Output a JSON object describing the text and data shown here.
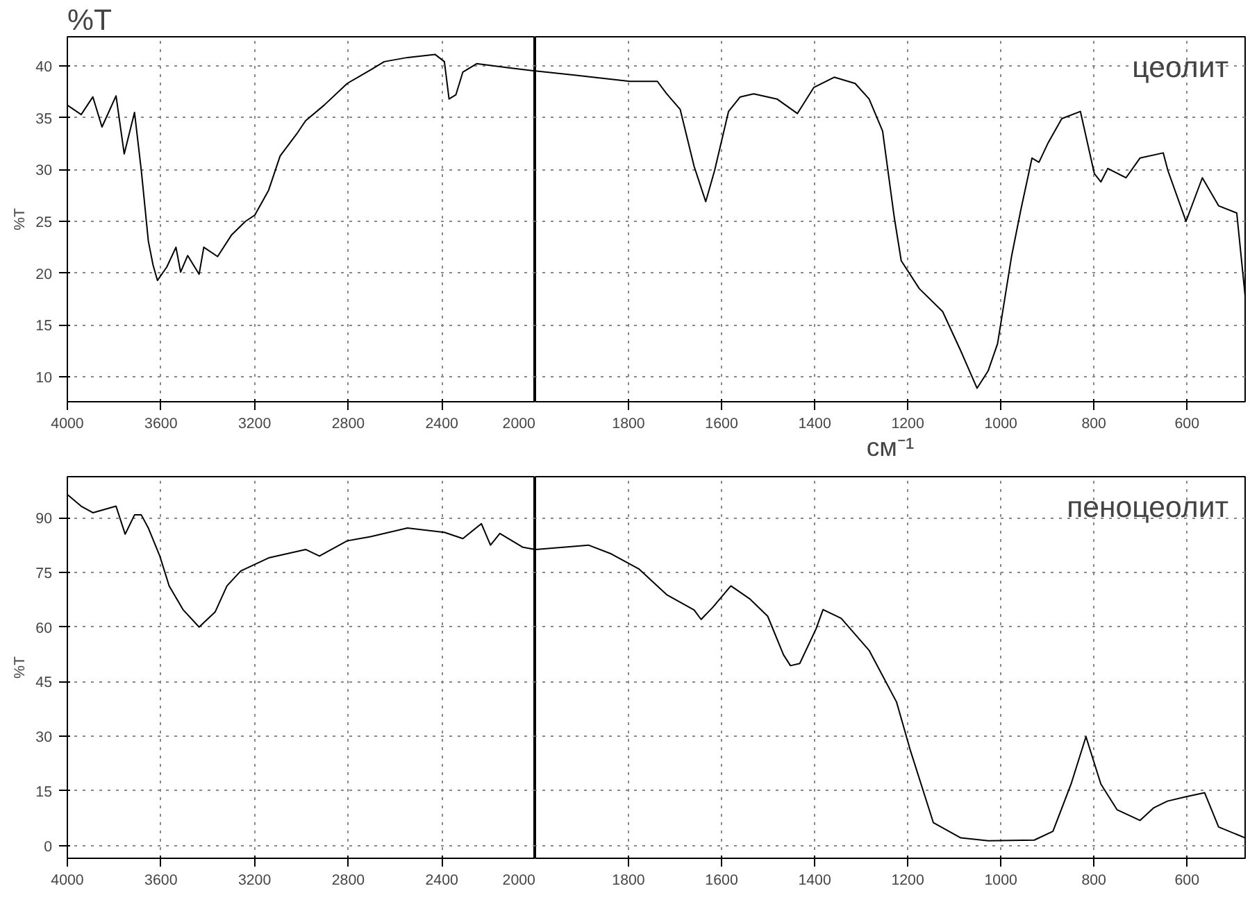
{
  "chart_data": [
    {
      "type": "line",
      "ylabel": "%T",
      "annotations": [
        "%T"
      ],
      "color": "#000000",
      "grid": true,
      "xlim": [
        4000,
        2000
      ],
      "ylim": [
        7.6,
        42.8
      ],
      "xticks": [
        4000,
        3600,
        3200,
        2800,
        2400,
        2000
      ],
      "yticks": [
        10,
        15,
        20,
        25,
        30,
        35,
        40
      ],
      "x": [
        4000,
        3941,
        3891,
        3852,
        3792,
        3757,
        3713,
        3684,
        3654,
        3634,
        3615,
        3575,
        3536,
        3516,
        3486,
        3437,
        3417,
        3358,
        3298,
        3239,
        3199,
        3140,
        3091,
        3021,
        2982,
        2903,
        2804,
        2705,
        2646,
        2547,
        2429,
        2389,
        2369,
        2340,
        2310,
        2251,
        2113,
        2000
      ],
      "values": [
        36.2,
        35.3,
        37.0,
        34.1,
        37.1,
        31.5,
        35.5,
        29.9,
        23.1,
        20.8,
        19.3,
        20.6,
        22.5,
        20.1,
        21.7,
        19.9,
        22.5,
        21.6,
        23.7,
        25.0,
        25.6,
        28.0,
        31.3,
        33.4,
        34.7,
        36.2,
        38.3,
        39.6,
        40.4,
        40.8,
        41.1,
        40.4,
        36.8,
        37.2,
        39.4,
        40.2,
        39.8,
        39.5
      ]
    },
    {
      "type": "line",
      "xlabel": "см⁻¹",
      "annotations": [
        "цеолит"
      ],
      "color": "#000000",
      "grid": true,
      "tick_labels": "x",
      "xlim": [
        2000,
        475
      ],
      "ylim": [
        7.6,
        42.8
      ],
      "xticks": [
        1800,
        1600,
        1400,
        1200,
        1000,
        800,
        600
      ],
      "yticks": [
        10,
        15,
        20,
        25,
        30,
        35,
        40
      ],
      "x": [
        2000,
        1916,
        1797,
        1738,
        1718,
        1689,
        1659,
        1634,
        1615,
        1585,
        1560,
        1531,
        1481,
        1437,
        1402,
        1358,
        1313,
        1283,
        1254,
        1229,
        1214,
        1175,
        1125,
        1086,
        1051,
        1027,
        1007,
        977,
        957,
        933,
        918,
        898,
        869,
        829,
        799,
        785,
        770,
        731,
        701,
        651,
        641,
        602,
        567,
        532,
        493,
        475
      ],
      "values": [
        39.5,
        39.1,
        38.5,
        38.5,
        37.3,
        35.8,
        30.3,
        26.9,
        29.9,
        35.6,
        37.0,
        37.3,
        36.8,
        35.4,
        37.9,
        38.9,
        38.3,
        36.8,
        33.7,
        25.4,
        21.2,
        18.5,
        16.3,
        12.5,
        8.9,
        10.6,
        13.2,
        21.6,
        26.1,
        31.1,
        30.7,
        32.6,
        34.9,
        35.6,
        29.6,
        28.8,
        30.1,
        29.2,
        31.1,
        31.6,
        29.9,
        25.0,
        29.2,
        26.5,
        25.8,
        17.8
      ]
    },
    {
      "type": "line",
      "ylabel": "%T",
      "color": "#000000",
      "grid": true,
      "xlim": [
        4000,
        2000
      ],
      "ylim": [
        -3.5,
        101.3
      ],
      "xticks": [
        4000,
        3600,
        3200,
        2800,
        2400,
        2000
      ],
      "yticks": [
        0,
        15,
        30,
        45,
        60,
        75,
        90
      ],
      "x": [
        4000,
        3941,
        3891,
        3792,
        3753,
        3713,
        3684,
        3654,
        3605,
        3565,
        3506,
        3437,
        3368,
        3318,
        3259,
        3140,
        2982,
        2923,
        2804,
        2705,
        2547,
        2389,
        2310,
        2231,
        2192,
        2152,
        2053,
        2000
      ],
      "values": [
        96.4,
        93.2,
        91.4,
        93.2,
        85.5,
        90.8,
        90.8,
        87.2,
        79.5,
        71.3,
        64.8,
        60.0,
        64.2,
        71.3,
        75.4,
        79.0,
        81.3,
        79.5,
        83.7,
        84.8,
        87.2,
        86.0,
        84.3,
        88.4,
        82.5,
        85.7,
        81.9,
        81.3
      ]
    },
    {
      "type": "line",
      "annotations": [
        "пеноцеолит"
      ],
      "color": "#000000",
      "grid": true,
      "tick_labels": "x",
      "xlim": [
        2000,
        475
      ],
      "ylim": [
        -3.5,
        101.3
      ],
      "xticks": [
        1800,
        1600,
        1400,
        1200,
        1000,
        800,
        600
      ],
      "yticks": [
        0,
        15,
        30,
        45,
        60,
        75,
        90
      ],
      "x": [
        2000,
        1886,
        1837,
        1778,
        1718,
        1659,
        1644,
        1619,
        1580,
        1540,
        1501,
        1467,
        1452,
        1432,
        1397,
        1382,
        1343,
        1283,
        1224,
        1195,
        1145,
        1086,
        1027,
        928,
        888,
        849,
        817,
        785,
        750,
        701,
        671,
        642,
        602,
        562,
        532,
        475
      ],
      "values": [
        81.3,
        82.5,
        80.1,
        76.0,
        68.9,
        64.7,
        62.1,
        65.4,
        71.3,
        67.8,
        63.0,
        52.4,
        49.4,
        50.0,
        59.5,
        64.8,
        62.4,
        53.6,
        39.4,
        26.4,
        6.3,
        2.1,
        1.3,
        1.5,
        3.9,
        16.9,
        29.9,
        16.9,
        9.8,
        6.9,
        10.4,
        12.2,
        13.4,
        14.5,
        5.1,
        2.1
      ]
    }
  ]
}
